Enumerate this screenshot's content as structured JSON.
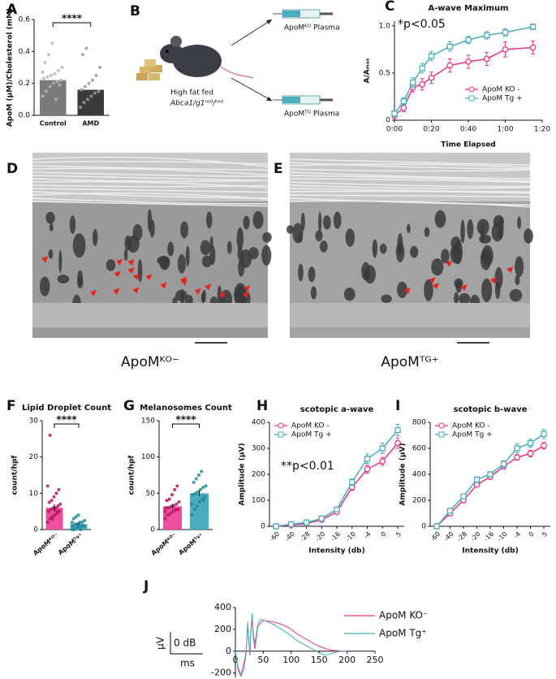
{
  "panel_labels": [
    "A",
    "B",
    "C",
    "D",
    "E",
    "F",
    "G",
    "H",
    "I",
    "J"
  ],
  "diagram": {
    "mouse_label": "High fat fed",
    "genotype": "Abca1/g1ʳᵒᵈ/ʳᵒᵈ",
    "outputs": [
      "ApoMᴷᴼ Plasma",
      "ApoMᵀᴳ Plasma"
    ]
  },
  "micrographs": [
    {
      "label": "ApoMᴷᴼ⁻"
    },
    {
      "label": "ApoMᵀᴳ⁺"
    }
  ],
  "chart_data": [
    {
      "type": "bar",
      "ylabel": "ApoM (µM)/Cholesterol (mM)",
      "categories": [
        "Control",
        "AMD"
      ],
      "values": [
        0.22,
        0.16
      ],
      "colors": [
        "#7a7a7a",
        "#3a3a3a"
      ],
      "point_colors": [
        "#b5b5b5",
        "#9a9a9a"
      ],
      "points": [
        [
          0.12,
          0.15,
          0.18,
          0.2,
          0.21,
          0.22,
          0.23,
          0.24,
          0.25,
          0.26,
          0.28,
          0.3,
          0.33,
          0.38,
          0.45,
          0.1,
          0.19,
          0.27
        ],
        [
          0.05,
          0.08,
          0.1,
          0.12,
          0.14,
          0.15,
          0.16,
          0.18,
          0.2,
          0.22,
          0.25,
          0.3,
          0.38,
          0.42
        ]
      ],
      "ylim": [
        0,
        0.6
      ],
      "yticks": [
        {
          "value": 0,
          "label": "0.0"
        },
        {
          "value": 0.2,
          "label": "0.2"
        },
        {
          "value": 0.4,
          "label": "0.4"
        },
        {
          "value": 0.6,
          "label": "0.6"
        }
      ],
      "annotation": "****"
    },
    {
      "type": "line",
      "title": "A-wave Maximum",
      "xlabel": "Time Elapsed",
      "ylabel": "A/Aₘₐₓ",
      "annotation": "*p<0.05",
      "legend": "lower right",
      "x": [
        0,
        5,
        10,
        15,
        20,
        30,
        40,
        50,
        60,
        75
      ],
      "series": [
        {
          "name": "ApoM KO -",
          "color": "#e8358a",
          "marker": "circle",
          "values": [
            0.05,
            0.13,
            0.35,
            0.38,
            0.45,
            0.58,
            0.62,
            0.65,
            0.75,
            0.77
          ],
          "errors": [
            0.03,
            0.04,
            0.05,
            0.06,
            0.06,
            0.07,
            0.07,
            0.07,
            0.08,
            0.07
          ]
        },
        {
          "name": "ApoM Tg +",
          "color": "#4aacbc",
          "marker": "square",
          "values": [
            0.07,
            0.2,
            0.4,
            0.55,
            0.68,
            0.78,
            0.85,
            0.9,
            0.93,
            0.99
          ],
          "errors": [
            0.03,
            0.04,
            0.05,
            0.05,
            0.05,
            0.05,
            0.04,
            0.04,
            0.04,
            0.03
          ]
        }
      ],
      "xlim": [
        0,
        80
      ],
      "xticks": [
        {
          "value": 0,
          "label": "0:00"
        },
        {
          "value": 20,
          "label": "0:20"
        },
        {
          "value": 40,
          "label": "0:40"
        },
        {
          "value": 60,
          "label": "1:00"
        },
        {
          "value": 80,
          "label": "1:20"
        }
      ],
      "ylim": [
        0,
        1.05
      ],
      "yticks": [
        0,
        0.5,
        {
          "value": 1,
          "label": "1.0"
        }
      ]
    },
    {
      "type": "bar",
      "title": "Lipid Droplet Count",
      "ylabel": "count/hpf",
      "categories": [
        "ApoMᴷᴼ⁻",
        "ApoMᵀᵍ⁺"
      ],
      "values": [
        6,
        1.5
      ],
      "errors": [
        1,
        0.4
      ],
      "colors": [
        "#ef4f9f",
        "#4aacbc"
      ],
      "point_colors": [
        "#b8155f",
        "#1e8a9a"
      ],
      "points": [
        [
          2,
          3,
          3.5,
          4,
          4.5,
          5,
          5,
          5.5,
          6,
          6,
          6.5,
          7,
          7.5,
          8,
          9,
          10,
          11,
          12,
          26,
          3,
          4,
          5
        ],
        [
          0,
          0,
          0.5,
          0.5,
          1,
          1,
          1,
          1.5,
          1.5,
          2,
          2,
          2.5,
          3,
          3.5,
          4,
          0,
          1,
          2
        ]
      ],
      "ylim": [
        0,
        30
      ],
      "yticks": [
        0,
        10,
        20,
        30
      ],
      "annotation": "****"
    },
    {
      "type": "bar",
      "title": "Melanosomes Count",
      "ylabel": "count/hpf",
      "categories": [
        "ApoMᴷᴼ⁻",
        "ApoMᵀᵍ⁺"
      ],
      "values": [
        32,
        50
      ],
      "errors": [
        3,
        4
      ],
      "colors": [
        "#ef4f9f",
        "#4aacbc"
      ],
      "point_colors": [
        "#b8155f",
        "#1e8a9a"
      ],
      "points": [
        [
          15,
          20,
          22,
          25,
          27,
          28,
          30,
          30,
          32,
          33,
          35,
          38,
          40,
          42,
          48,
          55,
          60,
          25
        ],
        [
          20,
          28,
          32,
          38,
          42,
          45,
          48,
          50,
          52,
          55,
          58,
          60,
          65,
          70,
          75,
          80,
          40,
          35
        ]
      ],
      "ylim": [
        0,
        150
      ],
      "yticks": [
        0,
        50,
        100,
        150
      ],
      "annotation": "****"
    },
    {
      "type": "line",
      "title": "scotopic a-wave",
      "xlabel": "Intensity (db)",
      "ylabel": "Amplitude (µV)",
      "annotation": "**p<0.01",
      "legend": "upper left",
      "categories": [
        "-60",
        "-40",
        "-28",
        "-20",
        "-16",
        "-10",
        "-4",
        "0",
        "5"
      ],
      "series": [
        {
          "name": "ApoM KO -",
          "color": "#e8358a",
          "marker": "circle",
          "values": [
            0,
            5,
            10,
            25,
            55,
            150,
            220,
            250,
            320
          ],
          "errors": [
            2,
            3,
            4,
            5,
            8,
            12,
            15,
            15,
            20
          ]
        },
        {
          "name": "ApoM Tg +",
          "color": "#4aacbc",
          "marker": "square",
          "values": [
            0,
            8,
            15,
            30,
            65,
            170,
            260,
            300,
            370
          ],
          "errors": [
            2,
            3,
            4,
            5,
            8,
            12,
            18,
            20,
            22
          ]
        }
      ],
      "ylim": [
        0,
        400
      ],
      "yticks": [
        0,
        100,
        200,
        300,
        400
      ]
    },
    {
      "type": "line",
      "title": "scotopic b-wave",
      "xlabel": "Intensity (db)",
      "ylabel": "Amplitude (µV)",
      "legend": "upper left",
      "categories": [
        "-60",
        "-40",
        "-28",
        "-20",
        "-16",
        "-10",
        "-4",
        "0",
        "5"
      ],
      "series": [
        {
          "name": "ApoM KO -",
          "color": "#e8358a",
          "marker": "circle",
          "values": [
            0,
            100,
            200,
            320,
            380,
            460,
            530,
            560,
            620
          ],
          "errors": [
            5,
            10,
            12,
            15,
            18,
            20,
            22,
            25,
            25
          ]
        },
        {
          "name": "ApoM Tg +",
          "color": "#4aacbc",
          "marker": "square",
          "values": [
            0,
            120,
            230,
            360,
            400,
            480,
            600,
            640,
            710
          ],
          "errors": [
            5,
            10,
            15,
            20,
            20,
            25,
            35,
            30,
            35
          ]
        }
      ],
      "ylim": [
        0,
        800
      ],
      "yticks": [
        0,
        200,
        400,
        600,
        800
      ]
    },
    {
      "type": "trace",
      "legend": "upper right",
      "scale_labels": [
        "µV",
        "0 dB",
        "ms"
      ],
      "x": [
        0,
        5,
        10,
        15,
        18,
        20,
        22,
        24,
        26,
        28,
        30,
        32,
        35,
        40,
        45,
        50,
        60,
        70,
        80,
        90,
        100,
        110,
        120,
        130,
        140,
        150,
        160,
        170,
        180,
        190,
        200
      ],
      "series": [
        {
          "name": "ApoM KO⁻",
          "color": "#e8358a",
          "values": [
            0,
            -150,
            -220,
            -120,
            -40,
            60,
            240,
            90,
            -40,
            180,
            320,
            140,
            20,
            220,
            260,
            280,
            275,
            265,
            250,
            230,
            200,
            160,
            130,
            100,
            70,
            45,
            25,
            12,
            5,
            0,
            0
          ]
        },
        {
          "name": "ApoM Tg⁺",
          "color": "#4aacbc",
          "values": [
            0,
            -180,
            -230,
            -170,
            -70,
            40,
            270,
            110,
            -30,
            220,
            350,
            170,
            70,
            240,
            290,
            285,
            265,
            240,
            210,
            175,
            140,
            100,
            70,
            40,
            15,
            -15,
            -35,
            -25,
            -10,
            0,
            0
          ]
        }
      ],
      "xlim": [
        0,
        250
      ],
      "xticks": [
        0,
        50,
        100,
        150,
        200,
        250
      ],
      "ylim": [
        -240,
        400
      ],
      "yticks": [
        -200,
        0,
        200,
        400
      ]
    }
  ]
}
